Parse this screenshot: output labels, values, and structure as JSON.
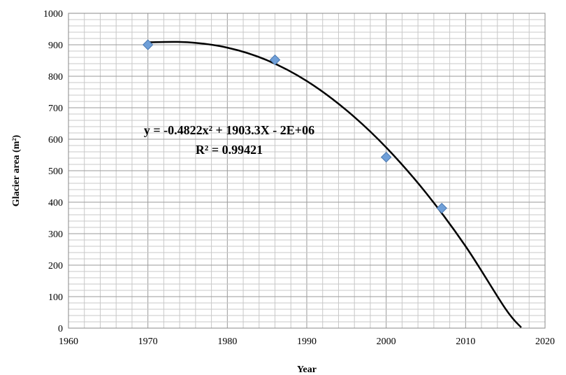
{
  "chart_data": {
    "type": "scatter",
    "xlabel": "Year",
    "ylabel": "Glacier area (m²)",
    "xlim": [
      1960,
      2020
    ],
    "ylim": [
      0,
      1000
    ],
    "x_ticks": [
      "1960",
      "1970",
      "1980",
      "1990",
      "2000",
      "2010",
      "2020"
    ],
    "y_ticks": [
      "0",
      "100",
      "200",
      "300",
      "400",
      "500",
      "600",
      "700",
      "800",
      "900",
      "1000"
    ],
    "grid": true,
    "series": [
      {
        "x": [
          1970,
          1986,
          2000,
          2007
        ],
        "y": [
          900,
          852,
          543,
          381
        ],
        "marker": "diamond",
        "color": "#6f9fd8"
      }
    ],
    "trendline": {
      "type": "polynomial-2",
      "color": "#000000",
      "x": [
        1970,
        1975,
        1980,
        1985,
        1990,
        1995,
        2000,
        2005,
        2010,
        2015,
        2017
      ],
      "y": [
        908,
        908,
        891,
        851,
        785,
        692,
        574,
        430,
        260,
        62,
        2
      ]
    },
    "annotations": [
      "y = -0.4822x² + 1903.3X - 2E+06",
      "R² = 0.99421"
    ]
  }
}
